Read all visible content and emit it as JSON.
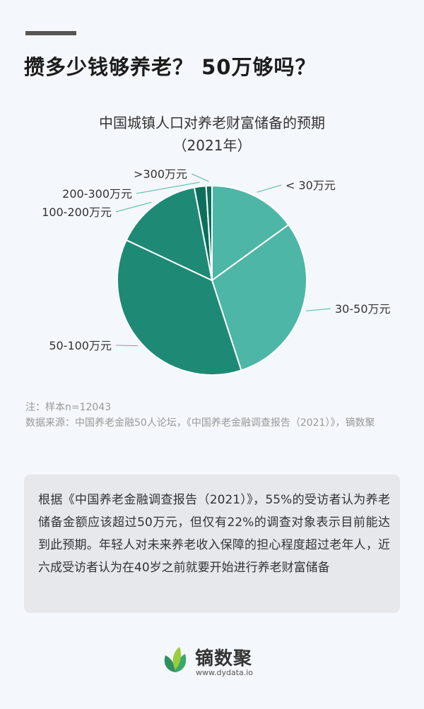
{
  "header": {
    "headline": "攒多少钱够养老？ 50万够吗？"
  },
  "chart_data": {
    "type": "pie",
    "title": "中国城镇人口对养老财富储备的预期",
    "subtitle": "（2021年）",
    "categories": [
      "< 30万元",
      "30-50万元",
      "50-100万元",
      "100-200万元",
      "200-300万元",
      ">300万元"
    ],
    "values": [
      15,
      30,
      37,
      15,
      2,
      1
    ],
    "colors": [
      "#4db6a6",
      "#4db6a6",
      "#1e8a76",
      "#1e8a76",
      "#0d6e5c",
      "#0d6e5c"
    ],
    "start_angle_deg": 0,
    "direction": "clockwise"
  },
  "notes": {
    "sample": "注：样本n=12043",
    "source": "数据来源：中国养老金融50人论坛，《中国养老金融调查报告（2021）》，镝数聚"
  },
  "summary": {
    "text": "根据《中国养老金融调查报告（2021）》，55%的受访者认为养老储备金额应该超过50万元，但仅有22%的调查对象表示目前能达到此预期。年轻人对未来养老收入保障的担心程度超过老年人，近六成受访者认为在40岁之前就要开始进行养老财富储备"
  },
  "brand": {
    "name": "镝数聚",
    "url": "www.dydata.io",
    "colors": [
      "#2f8f5f",
      "#9ccc3c"
    ]
  }
}
